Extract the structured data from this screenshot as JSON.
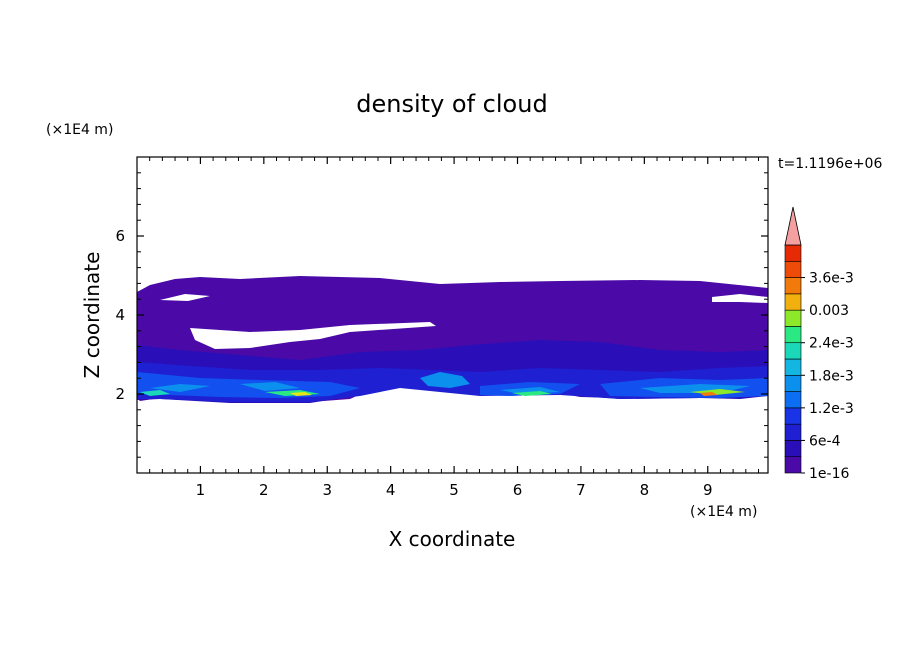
{
  "chart_data": {
    "type": "heatmap",
    "title": "density of cloud",
    "xlabel": "X coordinate",
    "ylabel": "Z coordinate",
    "x_unit": "(×1E4 m)",
    "y_unit": "(×1E4 m)",
    "time_label": "t=1.1196e+06",
    "xlim": [
      0,
      9.95
    ],
    "ylim": [
      0,
      8
    ],
    "x_ticks": [
      "1",
      "2",
      "3",
      "4",
      "5",
      "6",
      "7",
      "8",
      "9"
    ],
    "y_ticks": [
      "2",
      "4",
      "6"
    ],
    "colorbar": {
      "labels": [
        "1e-16",
        "6e-4",
        "1.2e-3",
        "1.8e-3",
        "2.4e-3",
        "0.003",
        "3.6e-3"
      ],
      "levels": 14,
      "colors": [
        "#4b0aa8",
        "#2a0fb8",
        "#1e20d2",
        "#1834e6",
        "#1250f0",
        "#0c6ef2",
        "#0c90ee",
        "#12b6e0",
        "#1ad8b8",
        "#2ae882",
        "#8ee82a",
        "#e6e816",
        "#f2b00e",
        "#f27a0a",
        "#ee4a08",
        "#e62a06"
      ],
      "extend_color": "#f4a0a0"
    },
    "layers": {
      "cloud_body": {
        "top_z": 4.85,
        "bottom_z": 2.0,
        "note_color": "#4b0aa8"
      },
      "dense_base": {
        "top_z": 2.6,
        "bottom_z": 1.75
      }
    }
  }
}
